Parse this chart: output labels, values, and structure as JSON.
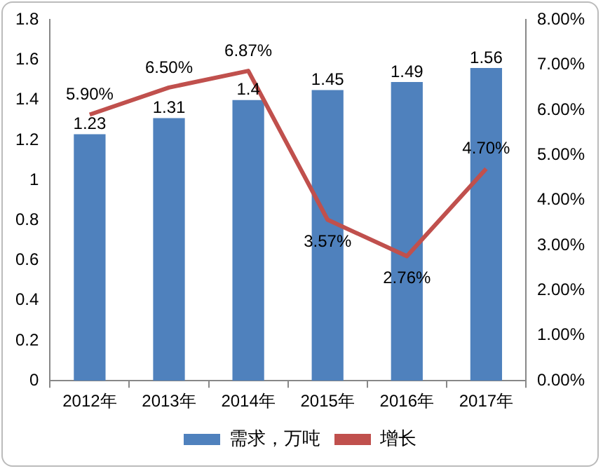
{
  "chart_data": {
    "type": "bar",
    "categories": [
      "2012年",
      "2013年",
      "2014年",
      "2015年",
      "2016年",
      "2017年"
    ],
    "series": [
      {
        "name": "需求，万吨",
        "color": "#4f81bd",
        "values": [
          1.23,
          1.31,
          1.4,
          1.45,
          1.49,
          1.56
        ],
        "data_labels": true
      },
      {
        "name": "增长",
        "type": "line",
        "axis": "y2",
        "color": "#c0504d",
        "values": [
          5.9,
          6.5,
          6.87,
          3.57,
          2.76,
          4.7
        ],
        "value_labels": [
          "5.90%",
          "6.50%",
          "6.87%",
          "3.57%",
          "2.76%",
          "4.70%"
        ]
      }
    ],
    "ylim": [
      0,
      1.8
    ],
    "yticks": [
      0,
      0.2,
      0.4,
      0.6,
      0.8,
      1,
      1.2,
      1.4,
      1.6,
      1.8
    ],
    "y2lim": [
      0,
      8
    ],
    "y2ticks": [
      {
        "value": 0,
        "label": "0.00%"
      },
      {
        "value": 1,
        "label": "1.00%"
      },
      {
        "value": 2,
        "label": "2.00%"
      },
      {
        "value": 3,
        "label": "3.00%"
      },
      {
        "value": 4,
        "label": "4.00%"
      },
      {
        "value": 5,
        "label": "5.00%"
      },
      {
        "value": 6,
        "label": "6.00%"
      },
      {
        "value": 7,
        "label": "7.00%"
      },
      {
        "value": 8,
        "label": "8.00%"
      }
    ],
    "grid": false,
    "legend": "bottom",
    "marker": "none",
    "line_style": "solid"
  }
}
